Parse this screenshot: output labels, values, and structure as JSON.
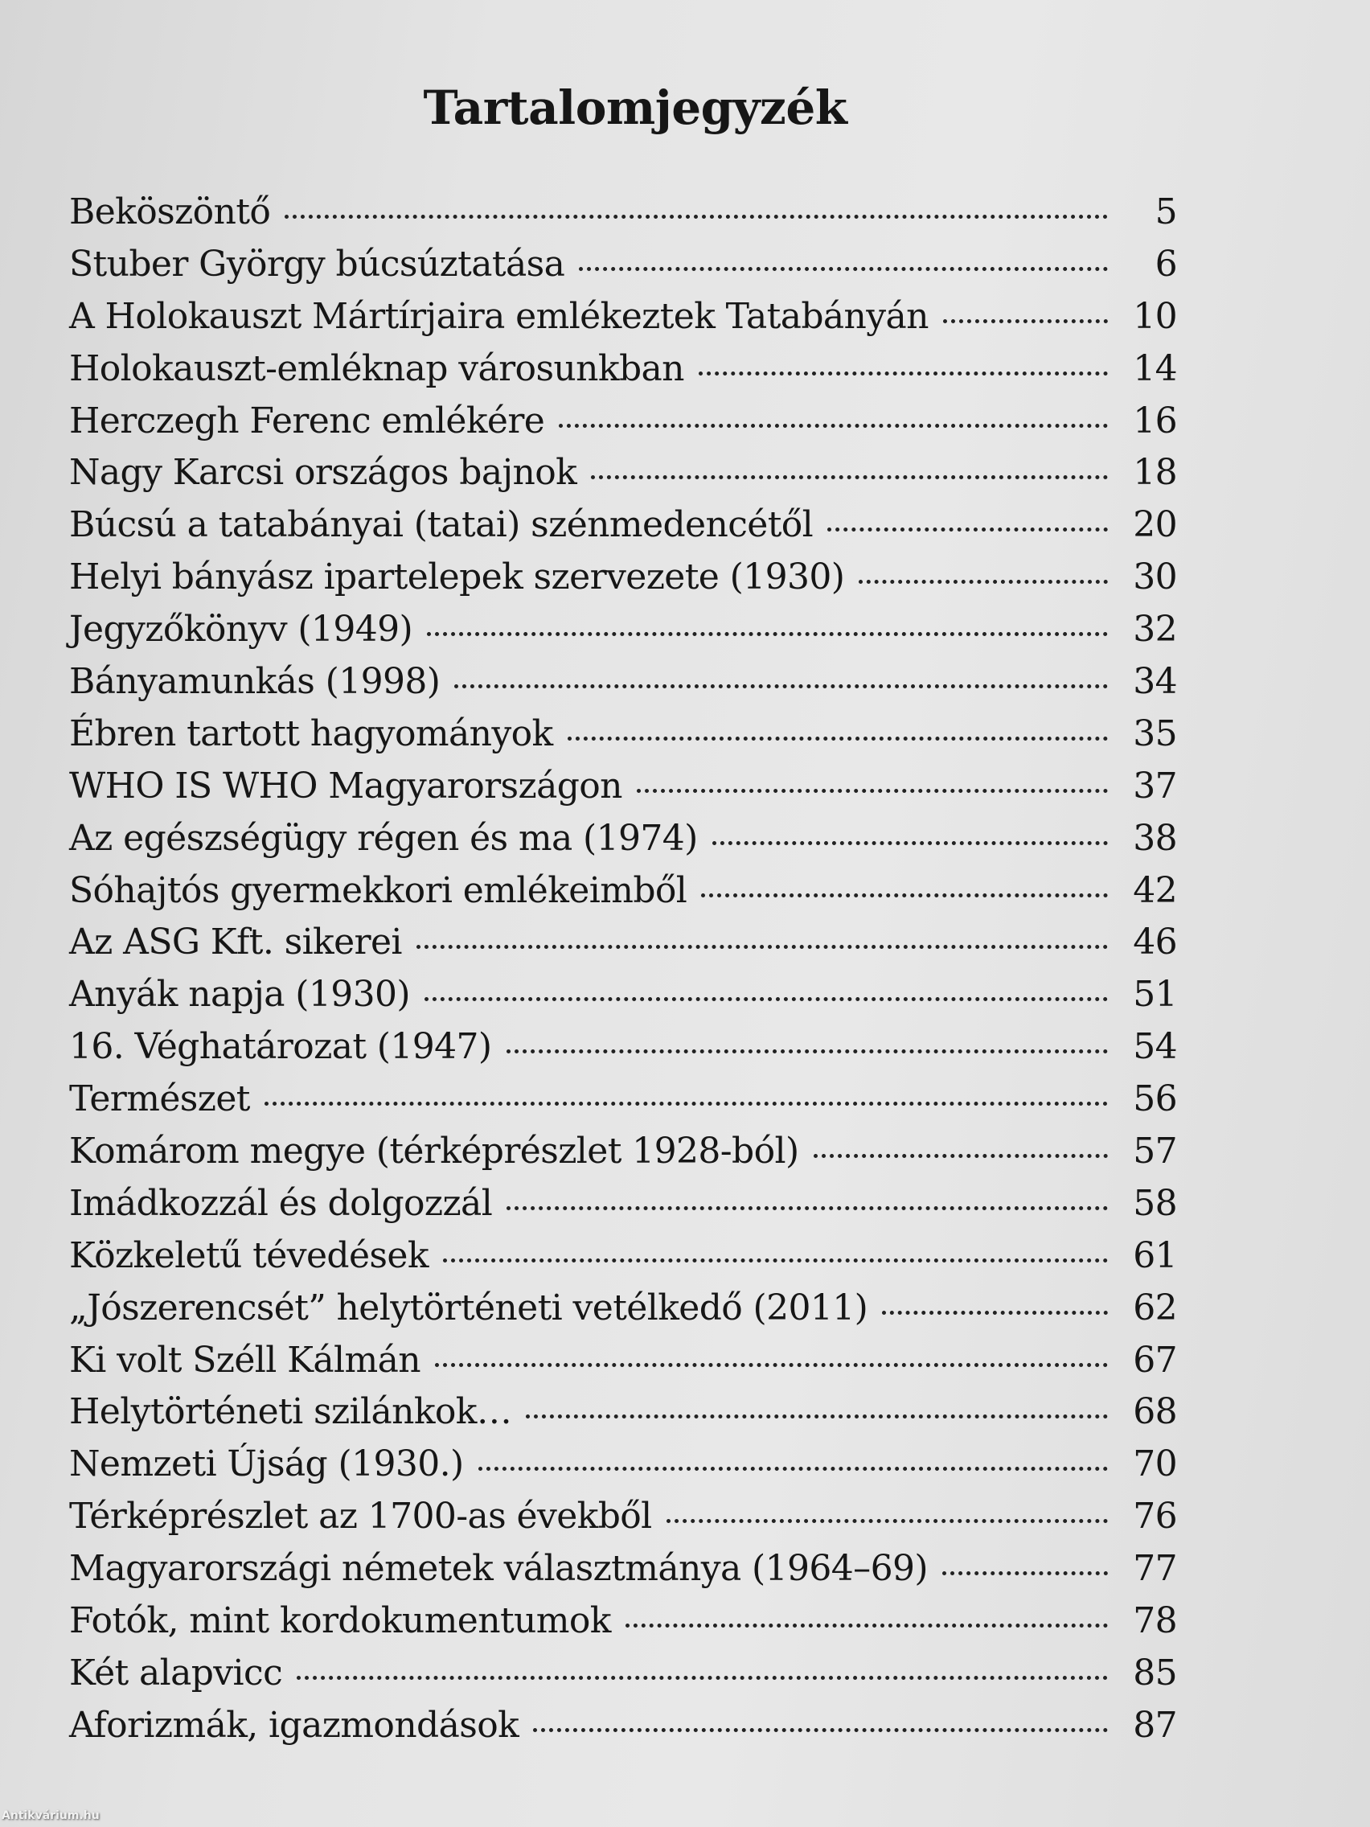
{
  "title": "Tartalomjegyzék",
  "entries": [
    {
      "label": "Beköszöntő",
      "page": "5"
    },
    {
      "label": "Stuber György búcsúztatása",
      "page": "6"
    },
    {
      "label": "A Holokauszt Mártírjaira emlékeztek Tatabányán",
      "page": "10"
    },
    {
      "label": "Holokauszt-emléknap városunkban",
      "page": "14"
    },
    {
      "label": "Herczegh Ferenc emlékére",
      "page": "16"
    },
    {
      "label": "Nagy Karcsi országos bajnok",
      "page": "18"
    },
    {
      "label": "Búcsú a tatabányai (tatai) szénmedencétől",
      "page": "20"
    },
    {
      "label": "Helyi bányász ipartelepek szervezete (1930)",
      "page": "30"
    },
    {
      "label": "Jegyzőkönyv (1949)",
      "page": "32"
    },
    {
      "label": "Bányamunkás (1998)",
      "page": "34"
    },
    {
      "label": "Ébren tartott hagyományok",
      "page": "35"
    },
    {
      "label": "WHO IS WHO Magyarországon",
      "page": "37"
    },
    {
      "label": "Az egészségügy régen és ma (1974)",
      "page": "38"
    },
    {
      "label": "Sóhajtós gyermekkori emlékeimből",
      "page": "42"
    },
    {
      "label": "Az ASG Kft. sikerei",
      "page": "46"
    },
    {
      "label": "Anyák napja (1930)",
      "page": "51"
    },
    {
      "label": "16. Véghatározat (1947)",
      "page": "54"
    },
    {
      "label": "Természet",
      "page": "56"
    },
    {
      "label": "Komárom megye (térképrészlet 1928-ból)",
      "page": "57"
    },
    {
      "label": "Imádkozzál és dolgozzál",
      "page": "58"
    },
    {
      "label": "Közkeletű tévedések",
      "page": "61"
    },
    {
      "label": "„Jószerencsét” helytörténeti vetélkedő (2011)",
      "page": "62"
    },
    {
      "label": "Ki volt Széll Kálmán",
      "page": "67"
    },
    {
      "label": "Helytörténeti szilánkok…",
      "page": "68"
    },
    {
      "label": "Nemzeti Újság (1930.)",
      "page": "70"
    },
    {
      "label": "Térképrészlet az 1700-as évekből",
      "page": "76"
    },
    {
      "label": "Magyarországi németek választmánya (1964–69)",
      "page": "77"
    },
    {
      "label": "Fotók, mint kordokumentumok",
      "page": "78"
    },
    {
      "label": "Két alapvicc",
      "page": "85"
    },
    {
      "label": "Aforizmák, igazmondások",
      "page": "87"
    }
  ],
  "watermark": "Antikvárium.hu"
}
